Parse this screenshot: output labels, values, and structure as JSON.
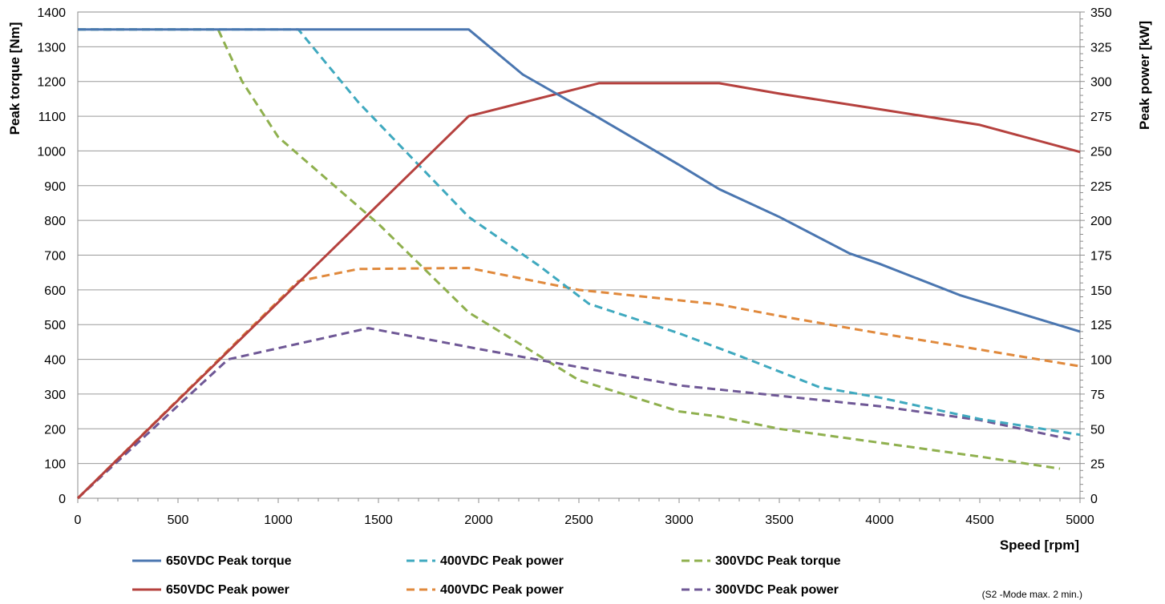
{
  "chart_data": {
    "type": "line",
    "xlabel": "Speed [rpm]",
    "ylabel_left": "Peak torque  [Nm]",
    "ylabel_right": "Peak power  [kW]",
    "xlim": [
      0,
      5000
    ],
    "xticks": [
      0,
      500,
      1000,
      1500,
      2000,
      2500,
      3000,
      3500,
      4000,
      4500,
      5000
    ],
    "ylim_left": [
      0,
      1400
    ],
    "yticks_left": [
      0,
      100,
      200,
      300,
      400,
      500,
      600,
      700,
      800,
      900,
      1000,
      1100,
      1200,
      1300,
      1400
    ],
    "ylim_right": [
      0,
      350
    ],
    "yticks_right": [
      0,
      25,
      50,
      75,
      100,
      125,
      150,
      175,
      200,
      225,
      250,
      275,
      300,
      325,
      350
    ],
    "grid": true,
    "legend_position": "bottom",
    "footnote": "(S2 -Mode max. 2 min.)",
    "series": [
      {
        "name": "650VDC Peak torque",
        "axis": "left",
        "color": "#4a76b0",
        "dash": "solid",
        "x": [
          0,
          1950,
          2220,
          2600,
          3000,
          3200,
          3500,
          3850,
          4000,
          4400,
          5000
        ],
        "y": [
          1350,
          1350,
          1220,
          1095,
          960,
          890,
          810,
          705,
          675,
          585,
          480
        ]
      },
      {
        "name": "650VDC Peak power",
        "axis": "left",
        "color": "#b5413e",
        "dash": "solid",
        "x": [
          0,
          1950,
          2600,
          3200,
          3500,
          4000,
          4500,
          5000
        ],
        "y": [
          0,
          1100,
          1195,
          1195,
          1165,
          1120,
          1075,
          997
        ]
      },
      {
        "name": "400VDC Peak power",
        "axis": "left",
        "color": "#3fa9bf",
        "dash": "dashed",
        "x": [
          0,
          1100,
          1400,
          1950,
          2300,
          2550,
          3000,
          3300,
          3700,
          4000,
          4500,
          5000
        ],
        "y": [
          1350,
          1350,
          1140,
          810,
          670,
          560,
          475,
          410,
          320,
          290,
          228,
          183
        ]
      },
      {
        "name": "400VDC Peak power",
        "axis": "left",
        "color": "#e0893c",
        "dash": "dashed",
        "x": [
          0,
          1100,
          1400,
          1950,
          2500,
          3000,
          3200,
          3500,
          4000,
          4500,
          5000
        ],
        "y": [
          0,
          625,
          660,
          663,
          600,
          570,
          558,
          525,
          475,
          428,
          380
        ]
      },
      {
        "name": "300VDC Peak torque",
        "axis": "left",
        "color": "#8fb04e",
        "dash": "dashed",
        "x": [
          0,
          700,
          820,
          1000,
          1500,
          1950,
          2500,
          3000,
          3200,
          3500,
          4000,
          4500,
          4900
        ],
        "y": [
          1350,
          1350,
          1200,
          1040,
          790,
          535,
          340,
          250,
          235,
          200,
          160,
          120,
          85
        ]
      },
      {
        "name": "300VDC Peak power",
        "axis": "left",
        "color": "#6f5896",
        "dash": "dashed",
        "x": [
          0,
          750,
          1450,
          2000,
          3000,
          3500,
          4000,
          4500,
          4950
        ],
        "y": [
          0,
          400,
          490,
          430,
          325,
          295,
          265,
          225,
          170
        ]
      }
    ]
  }
}
